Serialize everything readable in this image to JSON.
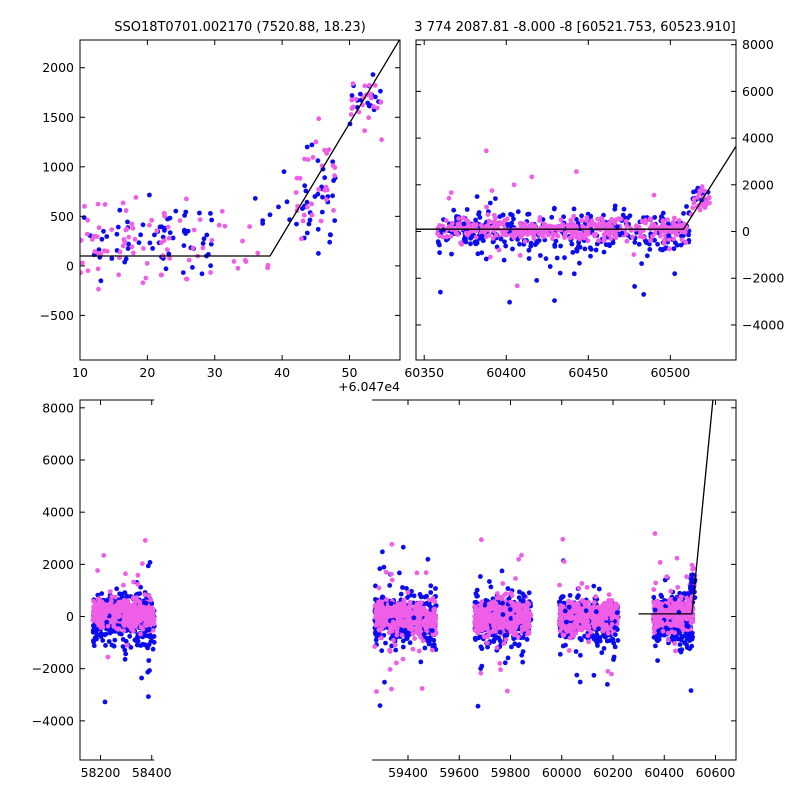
{
  "title_left": "SSO18T0701.002170 (7520.88, 18.23)",
  "title_right": "3 774 2087.81 -8.000 -8 [60521.753, 60523.910]",
  "colors": {
    "blue": "#0b0bf0",
    "pink": "#ee5ee6",
    "line": "#000000"
  },
  "chart_data": [
    {
      "id": "zoom-left",
      "type": "scatter",
      "xlim": [
        10,
        57.5
      ],
      "ylim": [
        -950,
        2280
      ],
      "x_offset_label": "+6.047e4",
      "x_ticks": [
        10,
        20,
        30,
        40,
        50
      ],
      "y_ticks": [
        -500,
        0,
        500,
        1000,
        1500,
        2000
      ],
      "y_tick_side": "left",
      "fit_line": {
        "x": [
          10,
          38.2,
          57.5
        ],
        "y": [
          100,
          100,
          2290
        ]
      },
      "clusters": [
        {
          "series": "blue",
          "x_range": [
            10,
            30
          ],
          "y_center": 250,
          "y_spread": 420,
          "count": 65,
          "seed": 11
        },
        {
          "series": "pink",
          "x_range": [
            10,
            30
          ],
          "y_center": 280,
          "y_spread": 380,
          "count": 70,
          "seed": 12
        },
        {
          "series": "pink",
          "x_range": [
            30,
            38
          ],
          "y_center": 250,
          "y_spread": 400,
          "count": 12,
          "seed": 13
        },
        {
          "series": "blue",
          "x_range": [
            36,
            42
          ],
          "y_center": 500,
          "y_spread": 350,
          "count": 8,
          "seed": 14
        },
        {
          "series": "blue",
          "x_range": [
            42,
            48
          ],
          "y_center": 650,
          "y_spread": 500,
          "count": 35,
          "seed": 15
        },
        {
          "series": "pink",
          "x_range": [
            42,
            48
          ],
          "y_center": 800,
          "y_spread": 500,
          "count": 30,
          "seed": 16
        },
        {
          "series": "blue",
          "x_range": [
            50,
            55
          ],
          "y_center": 1700,
          "y_spread": 250,
          "count": 18,
          "seed": 17
        },
        {
          "series": "pink",
          "x_range": [
            50,
            55
          ],
          "y_center": 1650,
          "y_spread": 300,
          "count": 22,
          "seed": 18
        }
      ]
    },
    {
      "id": "zoom-right",
      "type": "scatter",
      "xlim": [
        60345,
        60540
      ],
      "ylim": [
        -5500,
        8200
      ],
      "x_ticks": [
        60350,
        60400,
        60450,
        60500
      ],
      "y_ticks": [
        -4000,
        -2000,
        0,
        2000,
        4000,
        6000,
        8000
      ],
      "y_tick_side": "right",
      "fit_line": {
        "x": [
          60345,
          60508,
          60540
        ],
        "y": [
          100,
          100,
          3650
        ]
      },
      "clusters": [
        {
          "series": "blue",
          "x_range": [
            60358,
            60512
          ],
          "y_center": 0,
          "y_spread": 900,
          "count": 320,
          "seed": 21
        },
        {
          "series": "pink",
          "x_range": [
            60358,
            60512
          ],
          "y_center": 100,
          "y_spread": 450,
          "count": 380,
          "seed": 22
        },
        {
          "series": "blue",
          "x_range": [
            60358,
            60512
          ],
          "y_center": -300,
          "y_spread": 2400,
          "count": 35,
          "seed": 23
        },
        {
          "series": "pink",
          "x_range": [
            60358,
            60512
          ],
          "y_center": 300,
          "y_spread": 2200,
          "count": 30,
          "seed": 24
        },
        {
          "series": "blue",
          "x_range": [
            60512,
            60524
          ],
          "y_center": 1500,
          "y_spread": 500,
          "count": 18,
          "seed": 25
        },
        {
          "series": "pink",
          "x_range": [
            60512,
            60524
          ],
          "y_center": 1300,
          "y_spread": 500,
          "count": 25,
          "seed": 26
        }
      ]
    },
    {
      "id": "full-lightcurve",
      "type": "scatter",
      "xlim": [
        58120,
        60680
      ],
      "ylim": [
        -5500,
        8300
      ],
      "x_ticks": [
        58200,
        58400,
        59400,
        59600,
        59800,
        60000,
        60200,
        60400,
        60600
      ],
      "y_ticks": [
        -4000,
        -2000,
        0,
        2000,
        4000,
        6000,
        8000
      ],
      "y_tick_side": "left",
      "break_gap_x": [
        58410,
        59260
      ],
      "fit_line": {
        "x": [
          60300,
          60508,
          60590
        ],
        "y": [
          100,
          100,
          8300
        ]
      },
      "clusters": [
        {
          "series": "blue",
          "x_range": [
            58170,
            58410
          ],
          "y_center": -100,
          "y_spread": 900,
          "count": 320,
          "seed": 31
        },
        {
          "series": "pink",
          "x_range": [
            58170,
            58410
          ],
          "y_center": 100,
          "y_spread": 500,
          "count": 380,
          "seed": 32
        },
        {
          "series": "blue",
          "x_range": [
            58170,
            58410
          ],
          "y_center": -300,
          "y_spread": 2300,
          "count": 30,
          "seed": 33
        },
        {
          "series": "pink",
          "x_range": [
            58170,
            58410
          ],
          "y_center": 500,
          "y_spread": 2200,
          "count": 30,
          "seed": 34
        },
        {
          "series": "blue",
          "x_range": [
            59270,
            59510
          ],
          "y_center": -100,
          "y_spread": 900,
          "count": 320,
          "seed": 41
        },
        {
          "series": "pink",
          "x_range": [
            59270,
            59510
          ],
          "y_center": 0,
          "y_spread": 600,
          "count": 380,
          "seed": 42
        },
        {
          "series": "blue",
          "x_range": [
            59270,
            59510
          ],
          "y_center": -200,
          "y_spread": 2400,
          "count": 30,
          "seed": 43
        },
        {
          "series": "pink",
          "x_range": [
            59270,
            59510
          ],
          "y_center": -500,
          "y_spread": 2400,
          "count": 35,
          "seed": 44
        },
        {
          "series": "blue",
          "x_range": [
            59660,
            59880
          ],
          "y_center": -100,
          "y_spread": 900,
          "count": 300,
          "seed": 51
        },
        {
          "series": "pink",
          "x_range": [
            59660,
            59880
          ],
          "y_center": 0,
          "y_spread": 600,
          "count": 360,
          "seed": 52
        },
        {
          "series": "blue",
          "x_range": [
            59660,
            59880
          ],
          "y_center": -300,
          "y_spread": 2400,
          "count": 30,
          "seed": 53
        },
        {
          "series": "pink",
          "x_range": [
            59660,
            59880
          ],
          "y_center": -300,
          "y_spread": 2600,
          "count": 35,
          "seed": 54
        },
        {
          "series": "blue",
          "x_range": [
            59990,
            60220
          ],
          "y_center": -100,
          "y_spread": 900,
          "count": 300,
          "seed": 61
        },
        {
          "series": "pink",
          "x_range": [
            59990,
            60220
          ],
          "y_center": 0,
          "y_spread": 550,
          "count": 360,
          "seed": 62
        },
        {
          "series": "blue",
          "x_range": [
            59990,
            60220
          ],
          "y_center": -300,
          "y_spread": 2300,
          "count": 30,
          "seed": 63
        },
        {
          "series": "pink",
          "x_range": [
            59990,
            60220
          ],
          "y_center": -300,
          "y_spread": 2400,
          "count": 30,
          "seed": 64
        },
        {
          "series": "blue",
          "x_range": [
            60358,
            60512
          ],
          "y_center": -100,
          "y_spread": 850,
          "count": 260,
          "seed": 71
        },
        {
          "series": "pink",
          "x_range": [
            60358,
            60512
          ],
          "y_center": 50,
          "y_spread": 500,
          "count": 300,
          "seed": 72
        },
        {
          "series": "blue",
          "x_range": [
            60358,
            60512
          ],
          "y_center": -500,
          "y_spread": 2300,
          "count": 25,
          "seed": 73
        },
        {
          "series": "pink",
          "x_range": [
            60358,
            60512
          ],
          "y_center": 0,
          "y_spread": 2300,
          "count": 25,
          "seed": 74
        },
        {
          "series": "pink",
          "x_range": [
            60500,
            60524
          ],
          "y_center": 1200,
          "y_spread": 600,
          "count": 25,
          "seed": 75
        },
        {
          "series": "blue",
          "x_range": [
            60500,
            60524
          ],
          "y_center": 1300,
          "y_spread": 600,
          "count": 15,
          "seed": 76
        }
      ]
    }
  ]
}
